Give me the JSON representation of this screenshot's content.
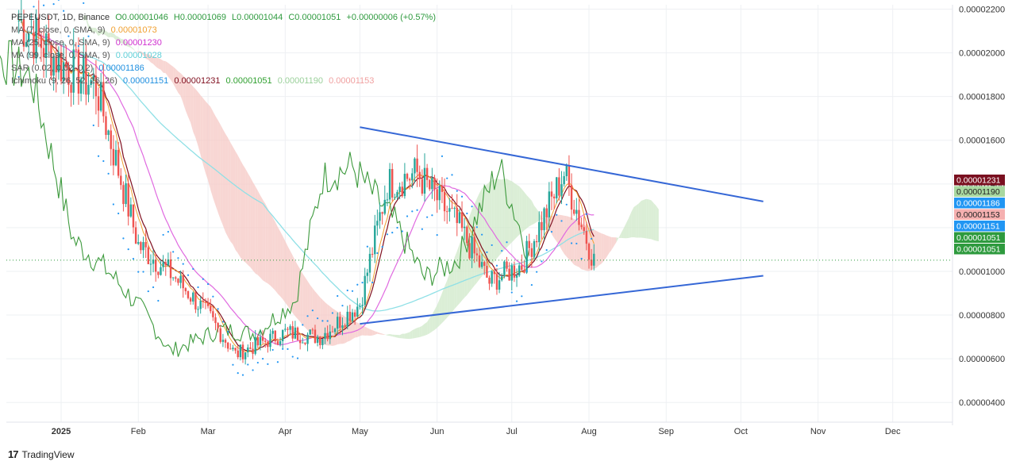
{
  "header": {
    "symbol": "PEPEUSDT, 1D, Binance",
    "open": "O0.00001046",
    "high": "H0.00001069",
    "low": "L0.00001044",
    "close": "C0.00001051",
    "change": "+0.00000006 (+0.57%)"
  },
  "indicators": [
    {
      "label": "MA (7, close, 0, SMA, 9)",
      "value": "0.00001073",
      "color": "#f0a030"
    },
    {
      "label": "MA (25, close, 0, SMA, 9)",
      "value": "0.00001230",
      "color": "#d030d0"
    },
    {
      "label": "MA (99, close, 0, SMA, 9)",
      "value": "0.00001028",
      "color": "#60d0d8"
    },
    {
      "label": "SAR (0.02, 0.02, 0.2)",
      "value": "0.00001186",
      "color": "#2090e0"
    },
    {
      "label": "Ichimoku (9, 26, 52, 26, 26)",
      "values": [
        "0.00001151",
        "0.00001231",
        "0.00001051",
        "0.00001190",
        "0.00001153"
      ],
      "colors": [
        "#2090e0",
        "#801020",
        "#30a030",
        "#9ad09a",
        "#f0a0a0"
      ]
    }
  ],
  "price_tags": [
    {
      "value": "0.00001231",
      "bg": "#7a1020"
    },
    {
      "value": "0.00001190",
      "bg": "#a8d8a0"
    },
    {
      "value": "0.00001186",
      "bg": "#2196f3"
    },
    {
      "value": "0.00001153",
      "bg": "#f5b0b0"
    },
    {
      "value": "0.00001151",
      "bg": "#2196f3"
    },
    {
      "value": "0.00001051",
      "bg": "#2e9a3e"
    },
    {
      "value": "0.00001051",
      "bg": "#2e9a3e"
    }
  ],
  "branding": {
    "logo_text": "TradingView"
  },
  "colors": {
    "up": "#26a69a",
    "down": "#ef5350",
    "trendline": "#3567d6",
    "cloud_bull": "#cfe8c8",
    "cloud_bear": "#f6c8c4"
  },
  "chart_data": {
    "type": "candlestick",
    "title": "PEPEUSDT, 1D, Binance",
    "x_ticks": [
      "2025",
      "Feb",
      "Mar",
      "Apr",
      "May",
      "Jun",
      "Jul",
      "Aug",
      "Sep",
      "Oct",
      "Nov",
      "Dec"
    ],
    "y_ticks": [
      "0.00002200",
      "0.00002000",
      "0.00001800",
      "0.00001600",
      "0.00001400",
      "0.00001200",
      "0.00001000",
      "0.00000800",
      "0.00000600",
      "0.00000400"
    ],
    "ylim": [
      3.1e-06,
      2.22e-05
    ],
    "grid": true,
    "current_price": 1.051e-05,
    "close_series_approx": [
      {
        "date": "2024-12-15",
        "close": 2.15e-05
      },
      {
        "date": "2025-01-01",
        "close": 1.95e-05
      },
      {
        "date": "2025-01-15",
        "close": 1.85e-05
      },
      {
        "date": "2025-02-01",
        "close": 1.12e-05
      },
      {
        "date": "2025-02-15",
        "close": 9.8e-06
      },
      {
        "date": "2025-03-01",
        "close": 8e-06
      },
      {
        "date": "2025-03-12",
        "close": 6.2e-06
      },
      {
        "date": "2025-04-01",
        "close": 7.2e-06
      },
      {
        "date": "2025-04-15",
        "close": 7e-06
      },
      {
        "date": "2025-05-01",
        "close": 8.5e-06
      },
      {
        "date": "2025-05-12",
        "close": 1.4e-05
      },
      {
        "date": "2025-05-24",
        "close": 1.45e-05
      },
      {
        "date": "2025-06-10",
        "close": 1.2e-05
      },
      {
        "date": "2025-06-22",
        "close": 9.5e-06
      },
      {
        "date": "2025-07-05",
        "close": 1.03e-05
      },
      {
        "date": "2025-07-22",
        "close": 1.45e-05
      },
      {
        "date": "2025-08-03",
        "close": 1.05e-05
      }
    ],
    "trendlines": [
      {
        "name": "upper",
        "from": {
          "date": "2025-05-01",
          "price": 1.66e-05
        },
        "to": {
          "date": "2025-10-10",
          "price": 1.32e-05
        }
      },
      {
        "name": "lower",
        "from": {
          "date": "2025-05-01",
          "price": 7.6e-06
        },
        "to": {
          "date": "2025-10-10",
          "price": 9.8e-06
        }
      }
    ]
  }
}
